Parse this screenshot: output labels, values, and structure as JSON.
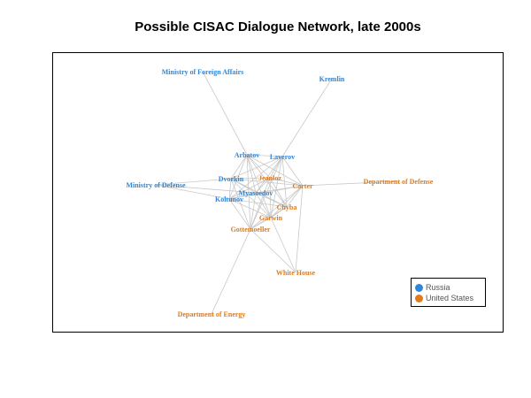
{
  "title": "Possible CISAC Dialogue Network, late 2000s",
  "colors": {
    "russia": "#2f86d8",
    "us": "#e07b1a",
    "edge": "#c8c8c8"
  },
  "legend": [
    {
      "key": "russia",
      "label": "Russia"
    },
    {
      "key": "us",
      "label": "United States"
    }
  ],
  "nodes": [
    {
      "id": "mfa",
      "label": "Ministry of Foreign Affairs",
      "group": "russia"
    },
    {
      "id": "kremlin",
      "label": "Kremlin",
      "group": "russia"
    },
    {
      "id": "arbatov",
      "label": "Arbatov",
      "group": "russia"
    },
    {
      "id": "lavrov",
      "label": "Laverov",
      "group": "russia"
    },
    {
      "id": "dodd",
      "label": "Department of Defense",
      "group": "us"
    },
    {
      "id": "mod",
      "label": "Ministry of Defense",
      "group": "russia"
    },
    {
      "id": "dvorkin",
      "label": "Dvorkin",
      "group": "russia"
    },
    {
      "id": "jeanloz",
      "label": "Jeanloz",
      "group": "us"
    },
    {
      "id": "carter",
      "label": "Carter",
      "group": "us"
    },
    {
      "id": "myasoedov",
      "label": "Myasoedov",
      "group": "russia"
    },
    {
      "id": "koltunov",
      "label": "Koltunov",
      "group": "russia"
    },
    {
      "id": "chyba",
      "label": "Chyba",
      "group": "us"
    },
    {
      "id": "garwin",
      "label": "Garwin",
      "group": "us"
    },
    {
      "id": "gottemoeller",
      "label": "Gottemoeller",
      "group": "us"
    },
    {
      "id": "wh",
      "label": "White House",
      "group": "us"
    },
    {
      "id": "doe",
      "label": "Department of Energy",
      "group": "us"
    }
  ],
  "edges": [
    [
      "mfa",
      "arbatov"
    ],
    [
      "kremlin",
      "lavrov"
    ],
    [
      "mod",
      "dvorkin"
    ],
    [
      "mod",
      "koltunov"
    ],
    [
      "mod",
      "myasoedov"
    ],
    [
      "dodd",
      "carter"
    ],
    [
      "wh",
      "carter"
    ],
    [
      "wh",
      "garwin"
    ],
    [
      "wh",
      "gottemoeller"
    ],
    [
      "doe",
      "gottemoeller"
    ],
    [
      "arbatov",
      "lavrov"
    ],
    [
      "arbatov",
      "dvorkin"
    ],
    [
      "arbatov",
      "jeanloz"
    ],
    [
      "arbatov",
      "carter"
    ],
    [
      "arbatov",
      "myasoedov"
    ],
    [
      "arbatov",
      "koltunov"
    ],
    [
      "arbatov",
      "chyba"
    ],
    [
      "arbatov",
      "garwin"
    ],
    [
      "arbatov",
      "gottemoeller"
    ],
    [
      "lavrov",
      "dvorkin"
    ],
    [
      "lavrov",
      "jeanloz"
    ],
    [
      "lavrov",
      "carter"
    ],
    [
      "lavrov",
      "myasoedov"
    ],
    [
      "lavrov",
      "koltunov"
    ],
    [
      "lavrov",
      "chyba"
    ],
    [
      "lavrov",
      "garwin"
    ],
    [
      "lavrov",
      "gottemoeller"
    ],
    [
      "dvorkin",
      "jeanloz"
    ],
    [
      "dvorkin",
      "carter"
    ],
    [
      "dvorkin",
      "myasoedov"
    ],
    [
      "dvorkin",
      "koltunov"
    ],
    [
      "dvorkin",
      "chyba"
    ],
    [
      "dvorkin",
      "garwin"
    ],
    [
      "dvorkin",
      "gottemoeller"
    ],
    [
      "jeanloz",
      "carter"
    ],
    [
      "jeanloz",
      "myasoedov"
    ],
    [
      "jeanloz",
      "koltunov"
    ],
    [
      "jeanloz",
      "chyba"
    ],
    [
      "jeanloz",
      "garwin"
    ],
    [
      "jeanloz",
      "gottemoeller"
    ],
    [
      "carter",
      "myasoedov"
    ],
    [
      "carter",
      "koltunov"
    ],
    [
      "carter",
      "chyba"
    ],
    [
      "carter",
      "garwin"
    ],
    [
      "carter",
      "gottemoeller"
    ],
    [
      "myasoedov",
      "koltunov"
    ],
    [
      "myasoedov",
      "chyba"
    ],
    [
      "myasoedov",
      "garwin"
    ],
    [
      "myasoedov",
      "gottemoeller"
    ],
    [
      "koltunov",
      "chyba"
    ],
    [
      "koltunov",
      "garwin"
    ],
    [
      "koltunov",
      "gottemoeller"
    ],
    [
      "chyba",
      "garwin"
    ],
    [
      "chyba",
      "gottemoeller"
    ],
    [
      "garwin",
      "gottemoeller"
    ]
  ]
}
